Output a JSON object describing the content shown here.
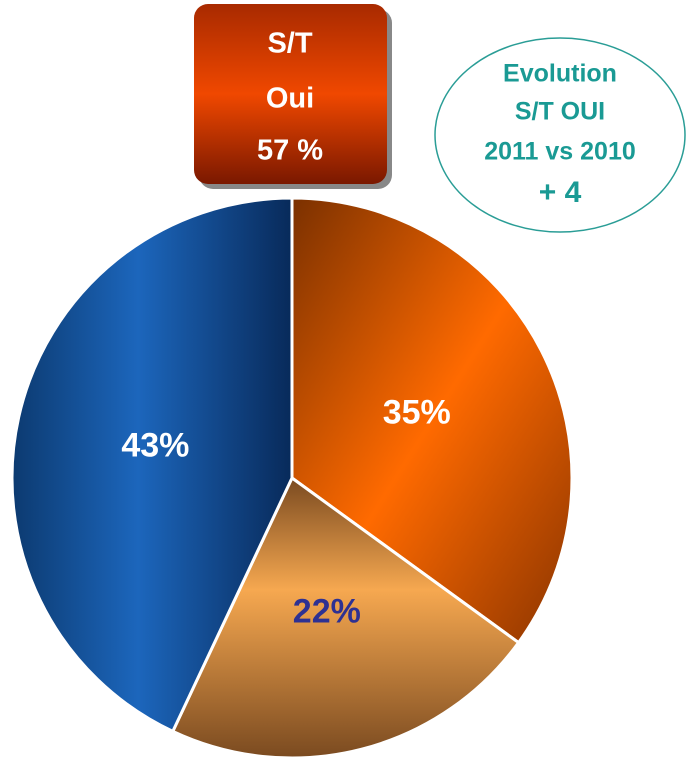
{
  "chart_data": {
    "type": "pie",
    "categories": [
      null,
      null,
      null
    ],
    "values": [
      35,
      22,
      43
    ],
    "value_labels": [
      "35%",
      "22%",
      "43%"
    ],
    "colors": [
      "#e8650c",
      "#eea050",
      "#1c62b4"
    ],
    "label_colors": [
      "#ffffff",
      "#2e3192",
      "#ffffff"
    ],
    "annotations": [
      {
        "lines": [
          "S/T",
          "Oui",
          "57 %"
        ]
      },
      {
        "lines": [
          "Evolution",
          "S/T OUI",
          "2011 vs 2010",
          "+ 4"
        ]
      }
    ]
  }
}
